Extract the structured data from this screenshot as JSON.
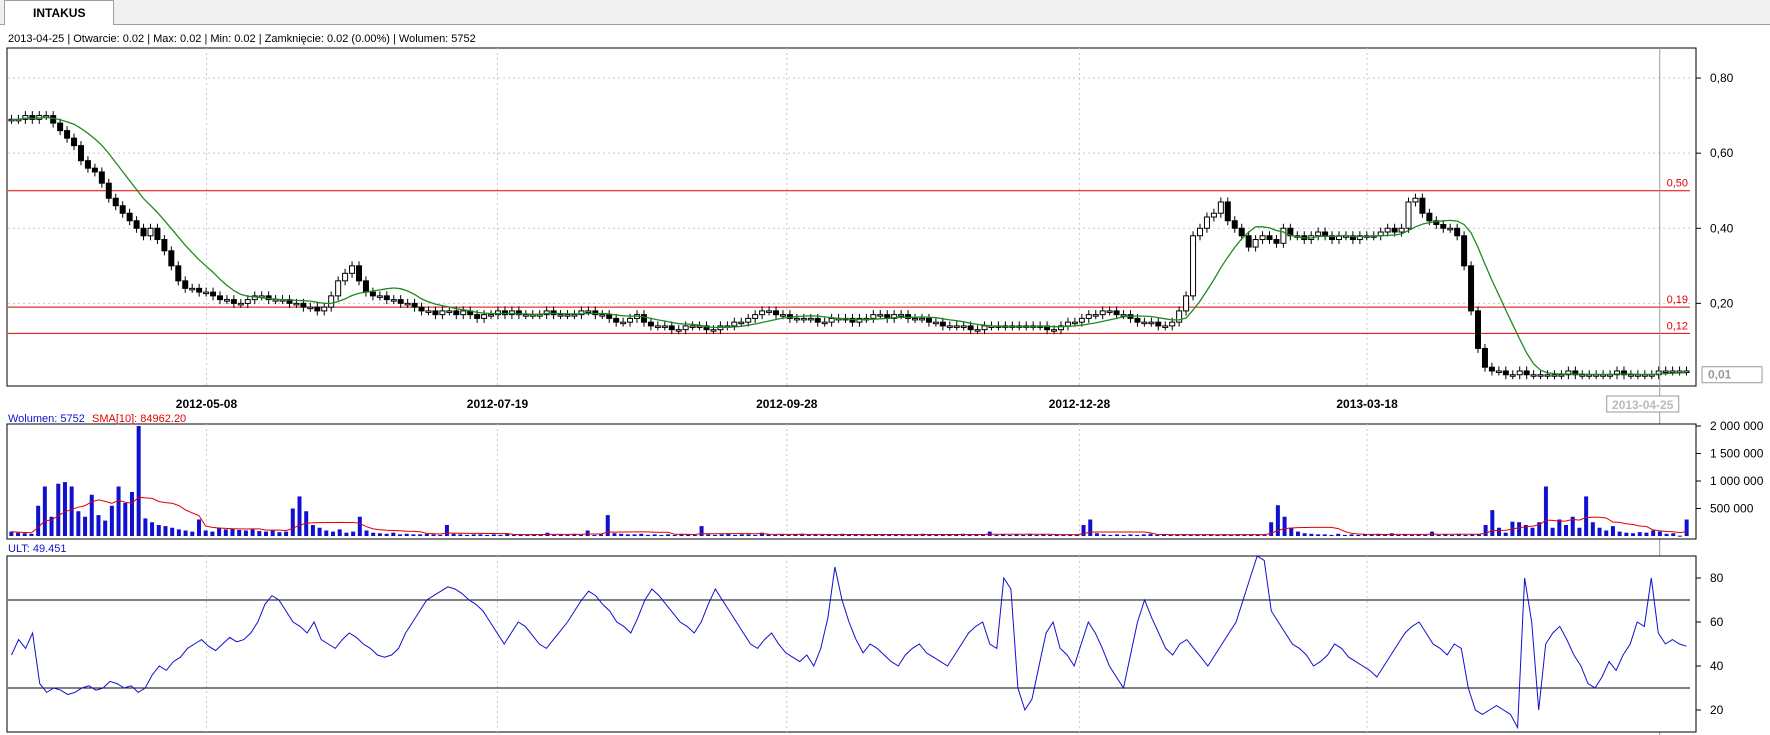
{
  "window": {
    "tab_label": "INTAKUS"
  },
  "info_line": "2013-04-25 | Otwarcie: 0.02 | Max: 0.02 | Min: 0.02 | Zamknięcie: 0.02 (0.00%)  | Wolumen: 5752",
  "colors": {
    "grid": "#c8c8c8",
    "hline": "#e00000",
    "ma": "#1f8a1f",
    "volume": "#1010d0",
    "vol_sma": "#e00000",
    "ult": "#1010d0"
  },
  "chart_data": [
    {
      "type": "candlestick",
      "title": "",
      "x_ticks": [
        "2012-05-08",
        "2012-07-19",
        "2012-09-28",
        "2012-12-28",
        "2013-03-18"
      ],
      "cursor_date": "2013-04-25",
      "y_ticks": [
        "0,80",
        "0,60",
        "0,40",
        "0,20"
      ],
      "ylim": [
        -0.02,
        0.88
      ],
      "price_scale_value": "0,01",
      "horizontal_lines": [
        {
          "label": "0,50",
          "value": 0.5
        },
        {
          "label": "0,19",
          "value": 0.19
        },
        {
          "label": "0,12",
          "value": 0.12
        }
      ],
      "close_series": [
        0.69,
        0.69,
        0.7,
        0.69,
        0.7,
        0.7,
        0.68,
        0.66,
        0.64,
        0.62,
        0.58,
        0.56,
        0.55,
        0.52,
        0.48,
        0.46,
        0.44,
        0.42,
        0.4,
        0.38,
        0.4,
        0.37,
        0.34,
        0.3,
        0.26,
        0.24,
        0.24,
        0.23,
        0.23,
        0.22,
        0.21,
        0.21,
        0.2,
        0.2,
        0.21,
        0.22,
        0.22,
        0.21,
        0.21,
        0.21,
        0.2,
        0.2,
        0.19,
        0.19,
        0.18,
        0.19,
        0.22,
        0.26,
        0.28,
        0.3,
        0.26,
        0.23,
        0.22,
        0.22,
        0.21,
        0.21,
        0.2,
        0.2,
        0.19,
        0.18,
        0.18,
        0.17,
        0.18,
        0.18,
        0.17,
        0.18,
        0.17,
        0.16,
        0.17,
        0.17,
        0.18,
        0.17,
        0.18,
        0.17,
        0.17,
        0.17,
        0.17,
        0.18,
        0.17,
        0.17,
        0.17,
        0.17,
        0.18,
        0.18,
        0.17,
        0.17,
        0.16,
        0.15,
        0.15,
        0.16,
        0.17,
        0.15,
        0.14,
        0.14,
        0.14,
        0.13,
        0.13,
        0.14,
        0.14,
        0.14,
        0.13,
        0.13,
        0.14,
        0.14,
        0.15,
        0.15,
        0.16,
        0.17,
        0.18,
        0.18,
        0.17,
        0.17,
        0.16,
        0.16,
        0.16,
        0.16,
        0.15,
        0.15,
        0.16,
        0.16,
        0.16,
        0.15,
        0.16,
        0.16,
        0.17,
        0.17,
        0.16,
        0.17,
        0.17,
        0.16,
        0.16,
        0.16,
        0.15,
        0.15,
        0.14,
        0.14,
        0.14,
        0.14,
        0.13,
        0.13,
        0.14,
        0.14,
        0.14,
        0.14,
        0.14,
        0.14,
        0.14,
        0.14,
        0.14,
        0.13,
        0.13,
        0.14,
        0.15,
        0.15,
        0.16,
        0.17,
        0.17,
        0.18,
        0.18,
        0.17,
        0.17,
        0.16,
        0.15,
        0.15,
        0.15,
        0.14,
        0.14,
        0.15,
        0.18,
        0.22,
        0.38,
        0.4,
        0.43,
        0.44,
        0.47,
        0.42,
        0.4,
        0.38,
        0.35,
        0.37,
        0.38,
        0.37,
        0.36,
        0.4,
        0.38,
        0.38,
        0.37,
        0.38,
        0.39,
        0.38,
        0.37,
        0.38,
        0.38,
        0.37,
        0.38,
        0.38,
        0.38,
        0.39,
        0.4,
        0.39,
        0.4,
        0.47,
        0.48,
        0.44,
        0.42,
        0.41,
        0.4,
        0.4,
        0.38,
        0.3,
        0.18,
        0.08,
        0.03,
        0.02,
        0.02,
        0.01,
        0.01,
        0.02,
        0.01,
        0.01,
        0.01,
        0.01,
        0.01,
        0.01,
        0.02,
        0.01,
        0.01,
        0.01,
        0.01,
        0.01,
        0.01,
        0.02,
        0.01,
        0.01,
        0.01,
        0.01,
        0.01,
        0.02,
        0.02,
        0.02,
        0.02,
        0.02
      ]
    },
    {
      "type": "bar",
      "legend": [
        {
          "name": "Wolumen: 5752"
        },
        {
          "name": "SMA[10]: 84962.20"
        }
      ],
      "y_ticks": [
        "2 000 000",
        "1 500 000",
        "1 000 000",
        "500 000"
      ],
      "ylim": [
        0,
        2000000
      ],
      "values": [
        80000,
        60000,
        50000,
        40000,
        550000,
        900000,
        350000,
        950000,
        980000,
        900000,
        450000,
        350000,
        750000,
        380000,
        280000,
        550000,
        900000,
        600000,
        800000,
        2000000,
        320000,
        250000,
        200000,
        180000,
        150000,
        120000,
        100000,
        80000,
        300000,
        100000,
        80000,
        150000,
        120000,
        130000,
        110000,
        100000,
        120000,
        90000,
        80000,
        100000,
        70000,
        80000,
        500000,
        720000,
        450000,
        200000,
        150000,
        100000,
        80000,
        120000,
        60000,
        80000,
        350000,
        100000,
        60000,
        50000,
        40000,
        60000,
        30000,
        40000,
        30000,
        30000,
        40000,
        30000,
        20000,
        200000,
        40000,
        30000,
        20000,
        30000,
        30000,
        20000,
        30000,
        20000,
        40000,
        20000,
        30000,
        20000,
        30000,
        20000,
        60000,
        20000,
        30000,
        20000,
        40000,
        20000,
        100000,
        20000,
        30000,
        380000,
        50000,
        40000,
        30000,
        30000,
        40000,
        20000,
        30000,
        20000,
        30000,
        20000,
        40000,
        30000,
        20000,
        180000,
        30000,
        20000,
        30000,
        40000,
        20000,
        30000,
        30000,
        20000,
        60000,
        30000,
        20000,
        30000,
        20000,
        30000,
        40000,
        20000,
        30000,
        20000,
        30000,
        20000,
        40000,
        30000,
        20000,
        30000,
        20000,
        30000,
        30000,
        20000,
        30000,
        20000,
        30000,
        30000,
        40000,
        20000,
        30000,
        20000,
        30000,
        20000,
        40000,
        20000,
        30000,
        20000,
        80000,
        20000,
        30000,
        20000,
        30000,
        20000,
        40000,
        20000,
        30000,
        20000,
        30000,
        20000,
        30000,
        20000,
        200000,
        300000,
        50000,
        30000,
        20000,
        30000,
        20000,
        30000,
        20000,
        30000,
        40000,
        20000,
        30000,
        20000,
        20000,
        30000,
        20000,
        30000,
        20000,
        30000,
        20000,
        30000,
        20000,
        30000,
        20000,
        30000,
        30000,
        20000,
        250000,
        560000,
        350000,
        150000,
        80000,
        50000,
        40000,
        30000,
        30000,
        20000,
        40000,
        20000,
        30000,
        20000,
        30000,
        30000,
        40000,
        20000,
        50000,
        20000,
        30000,
        20000,
        30000,
        20000,
        80000,
        20000,
        30000,
        20000,
        40000,
        20000,
        30000,
        30000,
        200000,
        470000,
        150000,
        60000,
        260000,
        250000,
        200000,
        150000,
        250000,
        900000,
        150000,
        300000,
        200000,
        350000,
        150000,
        720000,
        250000,
        150000,
        100000,
        180000,
        80000,
        60000,
        50000,
        70000,
        60000,
        100000,
        80000,
        40000,
        50000,
        5752,
        300000
      ]
    },
    {
      "type": "line",
      "legend": [
        {
          "name": "ULT: 49.451"
        }
      ],
      "y_ticks": [
        "80",
        "60",
        "40",
        "20"
      ],
      "ylim": [
        10,
        90
      ],
      "reference_lines": [
        70,
        30
      ],
      "values": [
        45,
        52,
        48,
        55,
        32,
        28,
        30,
        29,
        27,
        28,
        30,
        31,
        29,
        30,
        33,
        32,
        30,
        31,
        28,
        30,
        36,
        40,
        38,
        42,
        44,
        48,
        50,
        52,
        49,
        47,
        50,
        53,
        51,
        52,
        55,
        60,
        68,
        72,
        70,
        65,
        60,
        58,
        55,
        60,
        52,
        50,
        48,
        52,
        55,
        53,
        50,
        48,
        45,
        44,
        45,
        48,
        55,
        60,
        65,
        70,
        72,
        74,
        76,
        75,
        73,
        70,
        68,
        65,
        60,
        55,
        50,
        55,
        60,
        58,
        54,
        50,
        48,
        52,
        56,
        60,
        65,
        70,
        74,
        72,
        68,
        65,
        60,
        58,
        55,
        62,
        70,
        75,
        72,
        68,
        64,
        60,
        58,
        55,
        60,
        68,
        75,
        70,
        65,
        60,
        55,
        50,
        48,
        52,
        55,
        50,
        46,
        44,
        42,
        45,
        40,
        48,
        62,
        85,
        70,
        60,
        52,
        46,
        50,
        48,
        45,
        42,
        40,
        45,
        48,
        50,
        46,
        44,
        42,
        40,
        45,
        50,
        55,
        58,
        60,
        50,
        48,
        80,
        75,
        30,
        20,
        25,
        40,
        55,
        60,
        48,
        45,
        40,
        50,
        60,
        55,
        48,
        40,
        35,
        30,
        45,
        60,
        70,
        62,
        55,
        48,
        45,
        50,
        52,
        48,
        44,
        40,
        45,
        50,
        55,
        60,
        70,
        80,
        90,
        88,
        65,
        60,
        55,
        50,
        48,
        45,
        40,
        42,
        45,
        50,
        48,
        44,
        42,
        40,
        38,
        35,
        40,
        45,
        50,
        55,
        58,
        60,
        55,
        50,
        48,
        45,
        50,
        48,
        30,
        20,
        18,
        20,
        22,
        20,
        18,
        12,
        80,
        60,
        20,
        50,
        55,
        58,
        52,
        45,
        40,
        32,
        30,
        35,
        42,
        38,
        45,
        50,
        60,
        58,
        80,
        55,
        50,
        52,
        50,
        49
      ]
    }
  ]
}
